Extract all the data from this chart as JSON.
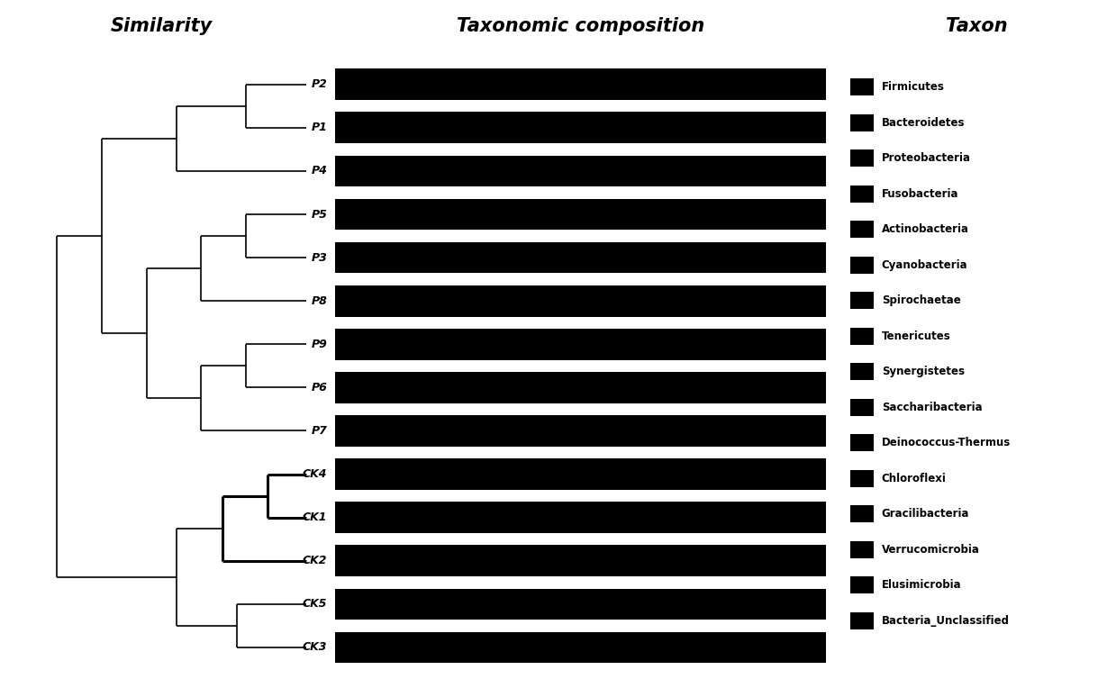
{
  "title_similarity": "Similarity",
  "title_taxonomic": "Taxonomic composition",
  "title_taxon": "Taxon",
  "samples": [
    "P2",
    "P1",
    "P4",
    "P5",
    "P3",
    "P8",
    "P9",
    "P6",
    "P7",
    "CK4",
    "CK1",
    "CK2",
    "CK5",
    "CK3"
  ],
  "taxa": [
    "Firmicutes",
    "Bacteroidetes",
    "Proteobacteria",
    "Fusobacteria",
    "Actinobacteria",
    "Cyanobacteria",
    "Spirochaetae",
    "Tenericutes",
    "Synergistetes",
    "Saccharibacteria",
    "Deinococcus-Thermus",
    "Chloroflexi",
    "Gracilibacteria",
    "Verrucomicrobia",
    "Elusimicrobia",
    "Bacteria_Unclassified"
  ],
  "bar_color": "#000000",
  "dendrogram_color": "#000000",
  "background_color": "#ffffff",
  "title_fontsize": 15,
  "sample_fontsize": 9,
  "legend_fontsize": 8.5
}
